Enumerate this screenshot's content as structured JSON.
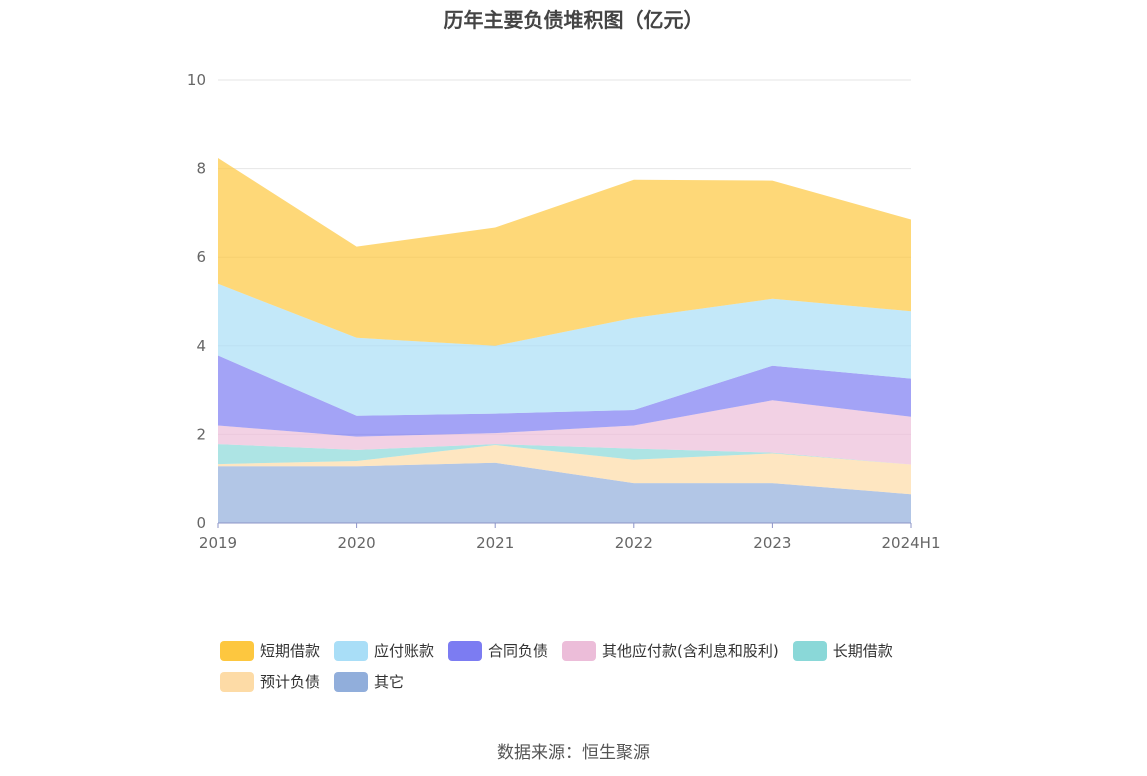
{
  "chart_data": {
    "type": "area",
    "stacked": true,
    "title": "历年主要负债堆积图（亿元）",
    "categories": [
      "2019",
      "2020",
      "2021",
      "2022",
      "2023",
      "2024H1"
    ],
    "ylim": [
      0,
      10
    ],
    "yticks": [
      "0",
      "2",
      "4",
      "6",
      "8",
      "10"
    ],
    "grid": true,
    "legend_position": "bottom",
    "series": [
      {
        "name": "其它",
        "color": "#91aedb",
        "values": [
          1.28,
          1.28,
          1.36,
          0.9,
          0.9,
          0.65
        ]
      },
      {
        "name": "预计负债",
        "color": "#fddba6",
        "values": [
          0.05,
          0.12,
          0.4,
          0.53,
          0.67,
          0.67
        ]
      },
      {
        "name": "长期借款",
        "color": "#8ad8d8",
        "values": [
          0.45,
          0.25,
          0.02,
          0.25,
          0.02,
          0.0
        ]
      },
      {
        "name": "其他应付款(含利息和股利)",
        "color": "#ecbdd9",
        "values": [
          0.42,
          0.3,
          0.25,
          0.52,
          1.18,
          1.08
        ]
      },
      {
        "name": "合同负债",
        "color": "#7c7cf2",
        "values": [
          1.58,
          0.47,
          0.44,
          0.35,
          0.78,
          0.86
        ]
      },
      {
        "name": "应付账款",
        "color": "#a9def7",
        "values": [
          1.62,
          1.76,
          1.53,
          2.08,
          1.51,
          1.52
        ]
      },
      {
        "name": "短期借款",
        "color": "#fdc73f",
        "values": [
          2.84,
          2.06,
          2.67,
          3.12,
          2.67,
          2.07
        ]
      }
    ]
  },
  "legend_order": [
    "短期借款",
    "应付账款",
    "合同负债",
    "其他应付款(含利息和股利)",
    "长期借款",
    "预计负债",
    "其它"
  ],
  "source": "数据来源：恒生聚源"
}
